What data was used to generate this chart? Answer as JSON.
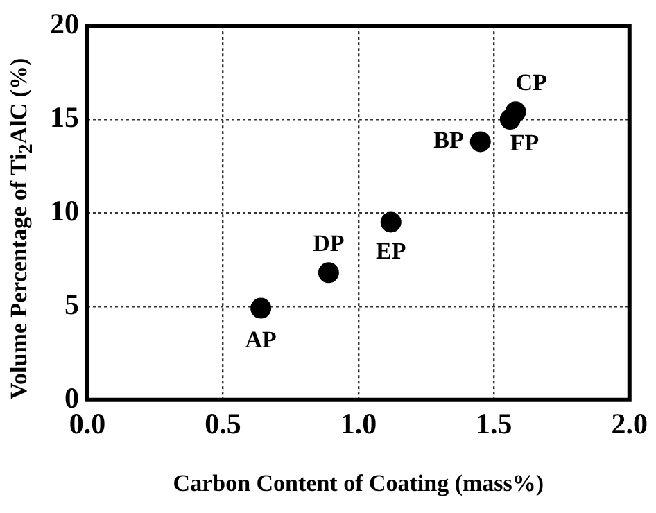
{
  "chart_data": {
    "type": "scatter",
    "xlabel": "Carbon Content of Coating (mass%)",
    "ylabel": "Volume Percentage of Ti$_{2}$AlC (%)",
    "x": [
      0.64,
      0.89,
      1.12,
      1.45,
      1.56,
      1.58
    ],
    "series": [
      {
        "color": "#000000",
        "values": [
          4.9,
          6.8,
          9.5,
          13.8,
          15.0,
          15.4
        ]
      }
    ],
    "xlim": [
      0,
      2
    ],
    "xticks": [
      {
        "value": 0,
        "label": "0.0"
      },
      {
        "value": 0.5,
        "label": "0.5"
      },
      {
        "value": 1,
        "label": "1.0"
      },
      {
        "value": 1.5,
        "label": "1.5"
      },
      {
        "value": 2,
        "label": "2.0"
      }
    ],
    "ylim": [
      0,
      20
    ],
    "yticks": [
      0,
      5,
      10,
      15,
      20
    ],
    "grid": true,
    "marker": "circle",
    "legend": false,
    "annotations": [
      {
        "text": "AP",
        "x": 0.64,
        "y": 4.9
      },
      {
        "text": "DP",
        "x": 0.89,
        "y": 6.8
      },
      {
        "text": "EP",
        "x": 1.12,
        "y": 9.5
      },
      {
        "text": "BP",
        "x": 1.45,
        "y": 13.8
      },
      {
        "text": "FP",
        "x": 1.56,
        "y": 15.0
      },
      {
        "text": "CP",
        "x": 1.58,
        "y": 15.4
      }
    ]
  }
}
